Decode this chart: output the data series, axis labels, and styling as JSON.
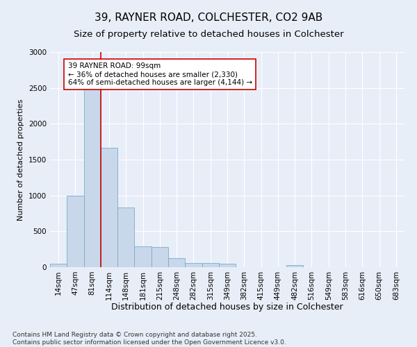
{
  "title": "39, RAYNER ROAD, COLCHESTER, CO2 9AB",
  "subtitle": "Size of property relative to detached houses in Colchester",
  "xlabel": "Distribution of detached houses by size in Colchester",
  "ylabel": "Number of detached properties",
  "bins": [
    "14sqm",
    "47sqm",
    "81sqm",
    "114sqm",
    "148sqm",
    "181sqm",
    "215sqm",
    "248sqm",
    "282sqm",
    "315sqm",
    "349sqm",
    "382sqm",
    "415sqm",
    "449sqm",
    "482sqm",
    "516sqm",
    "549sqm",
    "583sqm",
    "616sqm",
    "650sqm",
    "683sqm"
  ],
  "values": [
    50,
    1000,
    2500,
    1660,
    830,
    290,
    280,
    130,
    60,
    60,
    50,
    0,
    0,
    0,
    30,
    0,
    0,
    0,
    0,
    0,
    0
  ],
  "bar_color": "#c8d8ea",
  "bar_edge_color": "#7aaac8",
  "vline_color": "#cc0000",
  "vline_pos": 2.5,
  "ylim": [
    0,
    3000
  ],
  "yticks": [
    0,
    500,
    1000,
    1500,
    2000,
    2500,
    3000
  ],
  "annotation_text": "39 RAYNER ROAD: 99sqm\n← 36% of detached houses are smaller (2,330)\n64% of semi-detached houses are larger (4,144) →",
  "annotation_box_facecolor": "#ffffff",
  "annotation_box_edgecolor": "#cc0000",
  "footer_line1": "Contains HM Land Registry data © Crown copyright and database right 2025.",
  "footer_line2": "Contains public sector information licensed under the Open Government Licence v3.0.",
  "bg_color": "#e8eef8",
  "plot_bg_color": "#e8eef8",
  "title_fontsize": 11,
  "subtitle_fontsize": 9.5,
  "axis_label_fontsize": 8,
  "tick_fontsize": 7.5,
  "annotation_fontsize": 7.5,
  "footer_fontsize": 6.5
}
